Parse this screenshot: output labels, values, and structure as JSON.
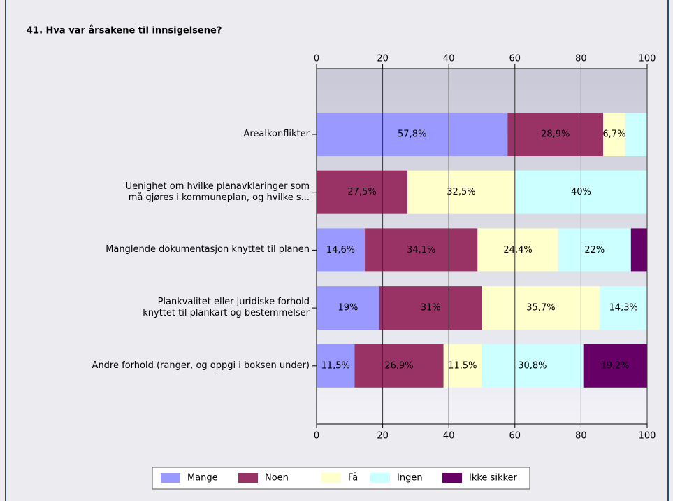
{
  "chart_data": {
    "type": "stacked_barh",
    "title": "41. Hva var årsakene til innsigelsene?",
    "categories": [
      "Arealkonflikter",
      "Uenighet om hvilke planavklaringer som\nmå gjøres i kommuneplan, og hvilke s...",
      "Manglende dokumentasjon knyttet til planen",
      "Plankvalitet eller juridiske forhold\nknyttet til plankart og bestemmelser",
      "Andre forhold (ranger, og oppgi i boksen under)"
    ],
    "series": [
      {
        "name": "Mange",
        "color": "#9999ff",
        "values": [
          57.8,
          0,
          14.6,
          19,
          11.5
        ],
        "value_labels": [
          "57,8%",
          null,
          "14,6%",
          "19%",
          "11,5%"
        ]
      },
      {
        "name": "Noen",
        "color": "#993366",
        "values": [
          28.9,
          27.5,
          34.1,
          31,
          26.9
        ],
        "value_labels": [
          "28,9%",
          "27,5%",
          "34,1%",
          "31%",
          "26,9%"
        ]
      },
      {
        "name": "Få",
        "color": "#ffffcc",
        "values": [
          6.7,
          32.5,
          24.4,
          35.7,
          11.5
        ],
        "value_labels": [
          "6,7%",
          "32,5%",
          "24,4%",
          "35,7%",
          "11,5%"
        ]
      },
      {
        "name": "Ingen",
        "color": "#ccffff",
        "values": [
          6.6,
          40,
          22,
          14.3,
          30.8
        ],
        "value_labels": [
          null,
          "40%",
          "22%",
          "14,3%",
          "30,8%"
        ]
      },
      {
        "name": "Ikke sikker",
        "color": "#660066",
        "values": [
          0,
          0,
          4.9,
          0,
          19.2
        ],
        "value_labels": [
          null,
          null,
          null,
          null,
          "19,2%"
        ]
      }
    ],
    "xlim": [
      0,
      100
    ],
    "xticks": [
      0,
      20,
      40,
      60,
      80,
      100
    ],
    "grid": true,
    "legend": "bottom"
  }
}
